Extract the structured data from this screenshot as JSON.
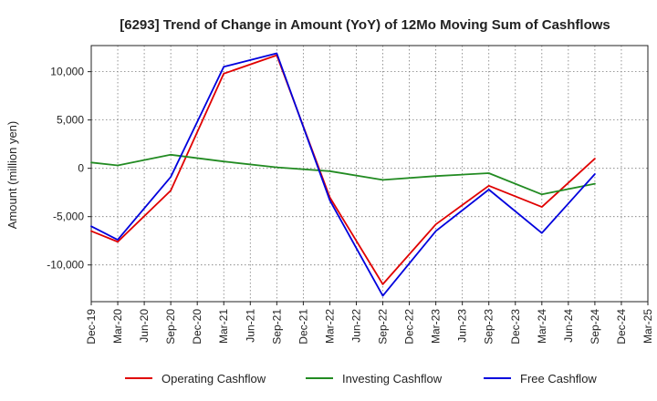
{
  "chart_data": {
    "type": "line",
    "title": "[6293]  Trend of Change in Amount (YoY) of 12Mo Moving Sum of Cashflows",
    "xlabel": "",
    "ylabel": "Amount (million yen)",
    "categories": [
      "Dec-19",
      "Mar-20",
      "Jun-20",
      "Sep-20",
      "Dec-20",
      "Mar-21",
      "Jun-21",
      "Sep-21",
      "Dec-21",
      "Mar-22",
      "Jun-22",
      "Sep-22",
      "Dec-22",
      "Mar-23",
      "Jun-23",
      "Sep-23",
      "Dec-23",
      "Mar-24",
      "Jun-24",
      "Sep-24",
      "Dec-24",
      "Mar-25"
    ],
    "ylim": [
      -13800,
      12700
    ],
    "yticks": [
      -10000,
      -5000,
      0,
      5000,
      10000
    ],
    "ytick_labels": [
      "-10,000",
      "-5,000",
      "0",
      "5,000",
      "10,000"
    ],
    "grid": true,
    "legend_position": "bottom",
    "series": [
      {
        "name": "Operating Cashflow",
        "color": "#e00000",
        "points": [
          [
            0,
            -6500
          ],
          [
            1,
            -7600
          ],
          [
            3,
            -2300
          ],
          [
            5,
            9800
          ],
          [
            7,
            11700
          ],
          [
            9,
            -3000
          ],
          [
            11,
            -12000
          ],
          [
            13,
            -5800
          ],
          [
            15,
            -1800
          ],
          [
            17,
            -4000
          ],
          [
            19,
            1000
          ]
        ]
      },
      {
        "name": "Investing Cashflow",
        "color": "#228b22",
        "points": [
          [
            0,
            600
          ],
          [
            1,
            300
          ],
          [
            3,
            1400
          ],
          [
            5,
            700
          ],
          [
            7,
            100
          ],
          [
            9,
            -300
          ],
          [
            11,
            -1200
          ],
          [
            13,
            -800
          ],
          [
            15,
            -500
          ],
          [
            17,
            -2700
          ],
          [
            19,
            -1600
          ]
        ]
      },
      {
        "name": "Free Cashflow",
        "color": "#0000dd",
        "points": [
          [
            0,
            -6000
          ],
          [
            1,
            -7400
          ],
          [
            3,
            -900
          ],
          [
            5,
            10500
          ],
          [
            7,
            11900
          ],
          [
            9,
            -3300
          ],
          [
            11,
            -13200
          ],
          [
            13,
            -6500
          ],
          [
            15,
            -2200
          ],
          [
            17,
            -6700
          ],
          [
            19,
            -600
          ]
        ]
      }
    ]
  }
}
